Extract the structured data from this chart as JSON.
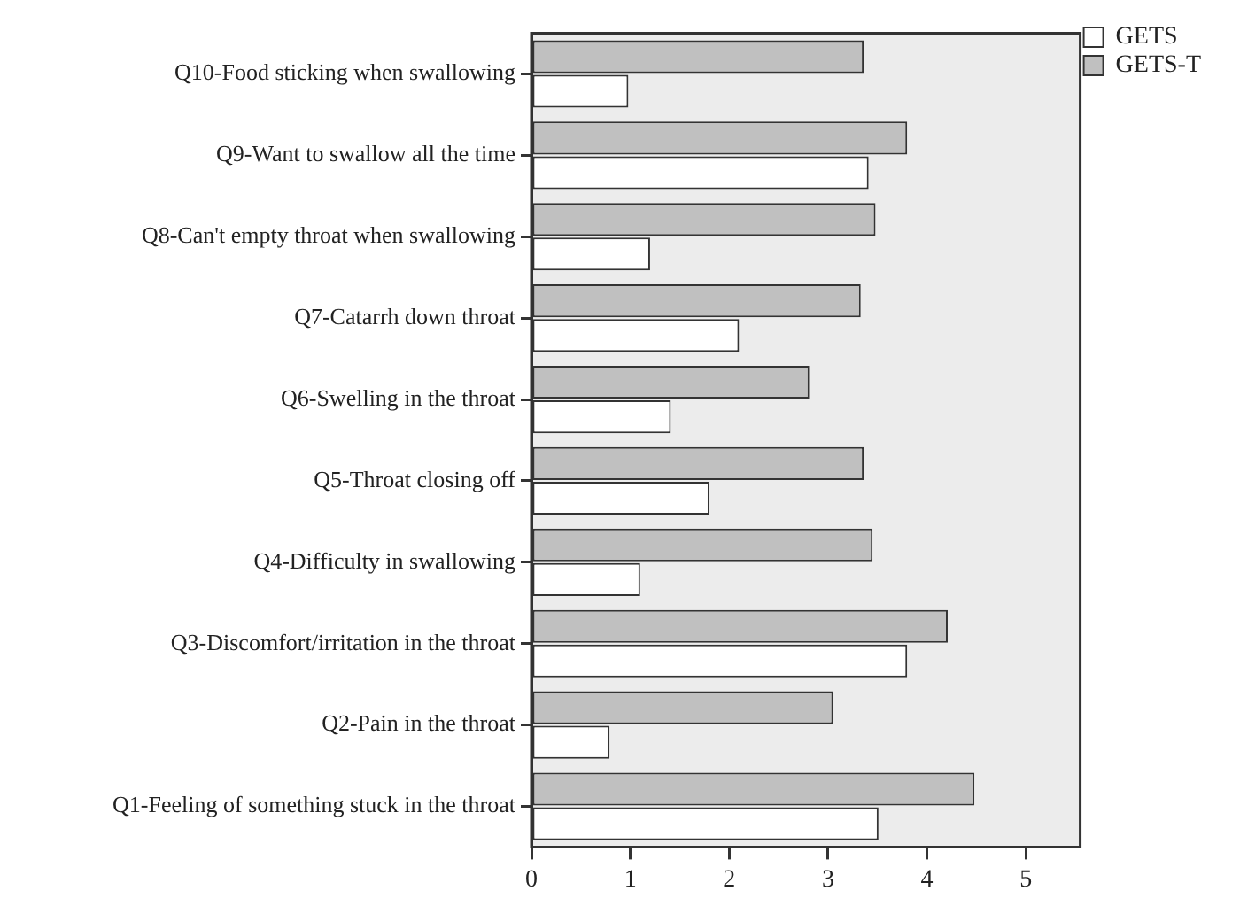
{
  "chart_data": {
    "type": "bar",
    "orientation": "horizontal",
    "categories": [
      "Q10-Food sticking when swallowing",
      "Q9-Want to swallow all the time",
      "Q8-Can't empty throat when swallowing",
      "Q7-Catarrh down throat",
      "Q6-Swelling in the throat",
      "Q5-Throat closing off",
      "Q4-Difficulty in swallowing",
      "Q3-Discomfort/irritation in the throat",
      "Q2-Pain in the throat",
      "Q1-Feeling of something stuck in the throat"
    ],
    "series": [
      {
        "name": "GETS",
        "color": "#ffffff",
        "values": [
          0.98,
          3.41,
          1.2,
          2.1,
          1.41,
          1.8,
          1.1,
          3.8,
          0.79,
          3.51
        ]
      },
      {
        "name": "GETS-T",
        "color": "#c0c0c0",
        "values": [
          3.36,
          3.8,
          3.48,
          3.33,
          2.81,
          3.36,
          3.45,
          4.21,
          3.05,
          4.48
        ]
      }
    ],
    "xlim": [
      0,
      5.55
    ],
    "xticks": [
      0,
      1,
      2,
      3,
      4,
      5
    ],
    "grid": false,
    "legend": "top right"
  }
}
